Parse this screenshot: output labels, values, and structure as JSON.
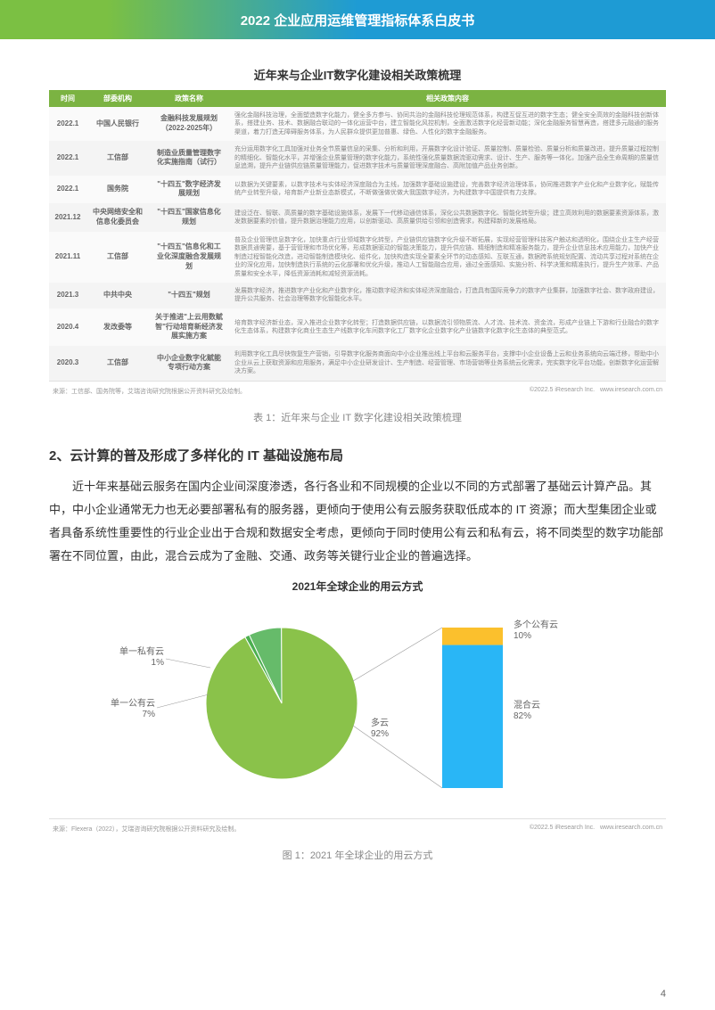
{
  "header_title": "2022 企业应用运维管理指标体系白皮书",
  "table_title": "近年来与企业IT数字化建设相关政策梳理",
  "table_headers": [
    "时间",
    "部委机构",
    "政策名称",
    "相关政策内容"
  ],
  "table_rows": [
    [
      "2022.1",
      "中国人民银行",
      "金融科技发展规划（2022-2025年）",
      "强化金融科技治理，全面塑造数字化能力，健全多方参与、协同共治的金融科技伦理规范体系，构建互促互进的数字生态；健全安全高效的金融科技创新体系，搭建业务、技术、数据融合联动的一体化运营中台，建立智能化风控机制，全面激活数字化经营新动能；深化金融服务智慧再造，搭建多元融通的服务渠道，着力打造无障碍服务体系，为人民群众提供更加普惠、绿色、人性化的数字金融服务。"
    ],
    [
      "2022.1",
      "工信部",
      "制造业质量管理数字化实施指南（试行）",
      "充分运用数字化工具加强对业务全节质量信息的采集、分析和利用，开展数字化设计验证、质量控制、质量检验、质量分析和质量改进，提升质量过程控制的精细化、智能化水平，并增强企业质量管理的数字化能力，系统性强化质量数据流驱动需求、设计、生产、服务等一体化，加强产品全生命周期的质量信息追溯，提升产业链供应链质量管理能力，促进数字技术与质量管理深度融合、高附加值产品业务创新。"
    ],
    [
      "2022.1",
      "国务院",
      "\"十四五\"数字经济发展规划",
      "以数据为关键要素，以数字技术与实体经济深度融合为主线，加强数字基础设施建设，完善数字经济治理体系，协同推进数字产业化和产业数字化，赋能传统产业转型升级，培育新产业新业态新模式，不断做强做优做大我国数字经济，为构建数字中国提供有力支撑。"
    ],
    [
      "2021.12",
      "中央网络安全和信息化委员会",
      "\"十四五\"国家信息化规划",
      "建设泛在、智联、高质量的数字基础设施体系，发展下一代移动通信体系，深化公共数据数字化、智能化转型升级；建立高效利用的数据要素资源体系，激发数据要素的价值，提升数据治理能力应用，以创新驱动、高质量供给引领和创造需求，构建释新的发展格局。"
    ],
    [
      "2021.11",
      "工信部",
      "\"十四五\"信息化和工业化深度融合发展规划",
      "普及企业管理信息数字化，加快重点行业领域数字化转型，产业链供应链数字化升级不断拓展，实现经营管理科技客户触达和透明化，围绕企业主生产经营数据贯通需要，基于营管理和市场优化等，形成数据驱动的智能决策能力，提升供应链、精细制造和精准服务能力，提升企业信息技术应用能力，加快产业制造过程智能化改造，进动智能制造模块化、组件化，加快构造实现全要素全环节的动态感知、互联互通，数据跨系统规划配置、流动共享过程对系统在企业的深化应用，加快制造执行系统的云化部署和优化升级，推动人工智能融合应用，通过全面感知、实施分析、科学决策和精准执行，提升生产效率、产品质量和安全水平，降低资源消耗和减轻资源消耗。"
    ],
    [
      "2021.3",
      "中共中央",
      "\"十四五\"规划",
      "发展数字经济，推进数字产业化和产业数字化，推动数字经济和实体经济深度融合，打造具有国际竞争力的数字产业集群，加强数字社会、数字政府建设，提升公共服务、社会治理等数字化智能化水平。"
    ],
    [
      "2020.4",
      "发改委等",
      "关于推进\"上云用数赋智\"行动培育新经济发展实施方案",
      "培育数字经济新业态，深入推进企业数字化转型；打造数据供应链，以数据流引领物质流、人才流、技术流、资金流，形成产业链上下游和行业融合的数字化生态体系，构建数字化商业生态生产线数字化车间数字化工厂数字化企业数字化产业链数字化数字化生态体的典型范式。"
    ],
    [
      "2020.3",
      "工信部",
      "中小企业数字化赋能专项行动方案",
      "利用数字化工具尽快恢复生产营销，引导数字化服务商面向中小企业推出线上平台和云服务平台，支撑中小企业设备上云和业务系统向云端迁移，帮助中小企业从云上获取资源和应用服务，满足中小企业研发设计、生产制造、经营管理、市场营销等业务系统云化需求，完实数字化平台功能，创新数字化运营解决方案。"
    ]
  ],
  "source_left": "来源：工信部、国务院等，艾瑞咨询研究院根据公开资料研究及绘制。",
  "copyright": "©2022.5 iResearch Inc.",
  "source_right": "www.iresearch.com.cn",
  "table_caption": "表 1：近年来与企业 IT 数字化建设相关政策梳理",
  "section_heading": "2、云计算的普及形成了多样化的 IT 基础设施布局",
  "body_paragraph": "近十年来基础云服务在国内企业间深度渗透，各行各业和不同规模的企业以不同的方式部署了基础云计算产品。其中，中小企业通常无力也无必要部署私有的服务器，更倾向于使用公有云服务获取低成本的 IT 资源；而大型集团企业或者具备系统性重要性的行业企业出于合规和数据安全考虑，更倾向于同时使用公有云和私有云，将不同类型的数字功能部署在不同位置，由此，混合云成为了金融、交通、政务等关键行业企业的普遍选择。",
  "chart_title": "2021年全球企业的用云方式",
  "pie_data": {
    "type": "pie",
    "slices": [
      {
        "label": "多云",
        "value": 92,
        "color": "#8ac24a"
      },
      {
        "label": "单一公有云",
        "value": 7,
        "color": "#66bb6a"
      },
      {
        "label": "单一私有云",
        "value": 1,
        "color": "#4caf50"
      }
    ],
    "label_multi": "多云\n92%",
    "label_single_public": "单一公有云\n7%",
    "label_single_private": "单一私有云\n1%"
  },
  "bar_data": {
    "type": "stacked-bar",
    "segments": [
      {
        "label": "混合云",
        "value": 82,
        "color": "#29b6f6"
      },
      {
        "label": "多个公有云",
        "value": 10,
        "color": "#fbc02d"
      }
    ],
    "label_hybrid": "混合云\n82%",
    "label_multi_public": "多个公有云\n10%"
  },
  "chart_source_left": "来源：Flexera（2022），艾瑞咨询研究院根据公开资料研究及绘制。",
  "chart_caption": "图 1：2021 年全球企业的用云方式",
  "page_num": "4"
}
